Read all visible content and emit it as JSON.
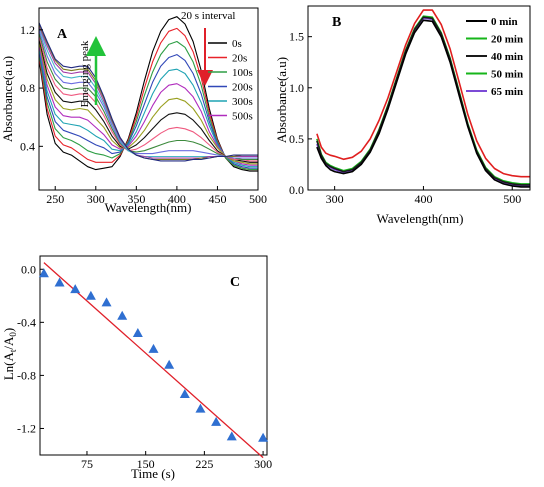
{
  "panel_labels": {
    "a": "A",
    "b": "B",
    "c": "C"
  },
  "annotations": {
    "interval": "20 s interval",
    "emerging": "Emerging peak"
  },
  "colors": {
    "panel_a": [
      "#000000",
      "#e8232a",
      "#2e9e45",
      "#3148b8",
      "#1fa3b3",
      "#b02cbd",
      "#9aa021",
      "#111111",
      "#ef5a80",
      "#3c8a3c",
      "#6d6de0",
      "#48b8c8",
      "#a13ba8",
      "#7a7a1e",
      "#222a80"
    ],
    "panel_b": [
      "#e01f1f",
      "#7c4bd6",
      "#16b51a",
      "#1a1a1a",
      "#000000"
    ],
    "c_marker": "#2f6fd1",
    "c_fit": "#e0202a",
    "interval_arrow": "#e0202a",
    "emerging_arrow": "#22c33a"
  },
  "chart_data": [
    {
      "type": "line",
      "id": "A",
      "xlabel": "Wavelength(nm)",
      "ylabel": "Absorbance(a.u)",
      "xlim": [
        230,
        500
      ],
      "ylim": [
        0.1,
        1.35
      ],
      "xticks": [
        250,
        300,
        350,
        400,
        450,
        500
      ],
      "yticks": [
        0.4,
        0.8,
        1.2
      ],
      "legend": "top-right",
      "legend_entries": [
        "0s",
        "20s",
        "100s",
        "200s",
        "300s",
        "500s"
      ],
      "x": [
        230,
        240,
        250,
        260,
        270,
        280,
        290,
        300,
        310,
        320,
        330,
        340,
        350,
        360,
        370,
        380,
        390,
        400,
        410,
        420,
        430,
        440,
        450,
        460,
        470,
        480,
        490,
        500
      ],
      "series": [
        {
          "name": "0s",
          "values": [
            1.0,
            0.62,
            0.42,
            0.36,
            0.34,
            0.3,
            0.26,
            0.24,
            0.25,
            0.26,
            0.33,
            0.45,
            0.63,
            0.85,
            1.05,
            1.19,
            1.27,
            1.29,
            1.24,
            1.12,
            0.92,
            0.66,
            0.45,
            0.32,
            0.26,
            0.24,
            0.23,
            0.23
          ]
        },
        {
          "values": [
            1.02,
            0.66,
            0.47,
            0.41,
            0.39,
            0.35,
            0.31,
            0.29,
            0.29,
            0.29,
            0.34,
            0.44,
            0.6,
            0.8,
            0.98,
            1.11,
            1.19,
            1.21,
            1.16,
            1.05,
            0.87,
            0.63,
            0.44,
            0.32,
            0.27,
            0.25,
            0.24,
            0.24
          ]
        },
        {
          "values": [
            1.04,
            0.7,
            0.52,
            0.46,
            0.44,
            0.41,
            0.37,
            0.35,
            0.34,
            0.32,
            0.35,
            0.43,
            0.57,
            0.75,
            0.91,
            1.03,
            1.1,
            1.12,
            1.08,
            0.98,
            0.82,
            0.6,
            0.43,
            0.32,
            0.27,
            0.25,
            0.24,
            0.24
          ]
        },
        {
          "values": [
            1.06,
            0.74,
            0.57,
            0.51,
            0.49,
            0.47,
            0.44,
            0.41,
            0.39,
            0.35,
            0.36,
            0.42,
            0.54,
            0.69,
            0.84,
            0.95,
            1.01,
            1.03,
            0.99,
            0.9,
            0.76,
            0.57,
            0.42,
            0.33,
            0.28,
            0.26,
            0.25,
            0.25
          ]
        },
        {
          "values": [
            1.08,
            0.78,
            0.62,
            0.56,
            0.55,
            0.54,
            0.51,
            0.47,
            0.44,
            0.38,
            0.37,
            0.41,
            0.5,
            0.63,
            0.76,
            0.86,
            0.92,
            0.93,
            0.9,
            0.82,
            0.7,
            0.54,
            0.41,
            0.33,
            0.29,
            0.27,
            0.26,
            0.26
          ]
        },
        {
          "values": [
            1.1,
            0.82,
            0.67,
            0.61,
            0.6,
            0.6,
            0.58,
            0.53,
            0.48,
            0.41,
            0.38,
            0.4,
            0.47,
            0.57,
            0.68,
            0.77,
            0.82,
            0.83,
            0.8,
            0.74,
            0.64,
            0.5,
            0.4,
            0.33,
            0.3,
            0.28,
            0.27,
            0.27
          ]
        },
        {
          "values": [
            1.12,
            0.86,
            0.72,
            0.66,
            0.65,
            0.66,
            0.65,
            0.59,
            0.53,
            0.44,
            0.39,
            0.39,
            0.44,
            0.51,
            0.6,
            0.67,
            0.72,
            0.73,
            0.71,
            0.66,
            0.58,
            0.47,
            0.39,
            0.33,
            0.3,
            0.29,
            0.28,
            0.28
          ]
        },
        {
          "values": [
            1.14,
            0.9,
            0.77,
            0.71,
            0.7,
            0.71,
            0.71,
            0.65,
            0.57,
            0.47,
            0.4,
            0.38,
            0.41,
            0.46,
            0.52,
            0.58,
            0.62,
            0.63,
            0.62,
            0.58,
            0.52,
            0.44,
            0.37,
            0.33,
            0.31,
            0.3,
            0.29,
            0.29
          ]
        },
        {
          "values": [
            1.16,
            0.94,
            0.82,
            0.76,
            0.75,
            0.76,
            0.76,
            0.7,
            0.61,
            0.5,
            0.41,
            0.37,
            0.38,
            0.41,
            0.45,
            0.49,
            0.52,
            0.53,
            0.52,
            0.5,
            0.46,
            0.41,
            0.36,
            0.33,
            0.31,
            0.31,
            0.3,
            0.3
          ]
        },
        {
          "values": [
            1.18,
            0.98,
            0.86,
            0.8,
            0.79,
            0.8,
            0.8,
            0.74,
            0.64,
            0.52,
            0.42,
            0.37,
            0.36,
            0.37,
            0.39,
            0.41,
            0.43,
            0.44,
            0.44,
            0.43,
            0.41,
            0.38,
            0.35,
            0.33,
            0.32,
            0.31,
            0.31,
            0.31
          ]
        },
        {
          "values": [
            1.2,
            1.02,
            0.9,
            0.84,
            0.83,
            0.84,
            0.84,
            0.77,
            0.67,
            0.54,
            0.43,
            0.37,
            0.35,
            0.35,
            0.35,
            0.36,
            0.37,
            0.37,
            0.37,
            0.37,
            0.36,
            0.35,
            0.34,
            0.33,
            0.32,
            0.32,
            0.32,
            0.32
          ]
        },
        {
          "values": [
            1.22,
            1.06,
            0.94,
            0.88,
            0.87,
            0.88,
            0.88,
            0.8,
            0.69,
            0.56,
            0.44,
            0.37,
            0.34,
            0.33,
            0.33,
            0.33,
            0.33,
            0.33,
            0.33,
            0.33,
            0.33,
            0.33,
            0.33,
            0.33,
            0.33,
            0.33,
            0.33,
            0.33
          ]
        },
        {
          "values": [
            1.23,
            1.09,
            0.97,
            0.91,
            0.9,
            0.91,
            0.91,
            0.83,
            0.71,
            0.57,
            0.45,
            0.38,
            0.34,
            0.33,
            0.32,
            0.32,
            0.32,
            0.32,
            0.32,
            0.32,
            0.32,
            0.33,
            0.33,
            0.33,
            0.33,
            0.33,
            0.33,
            0.33
          ]
        },
        {
          "values": [
            1.24,
            1.11,
            0.99,
            0.93,
            0.92,
            0.93,
            0.93,
            0.85,
            0.73,
            0.58,
            0.46,
            0.38,
            0.34,
            0.32,
            0.31,
            0.31,
            0.31,
            0.31,
            0.31,
            0.31,
            0.32,
            0.32,
            0.33,
            0.33,
            0.33,
            0.34,
            0.34,
            0.34
          ]
        },
        {
          "values": [
            1.25,
            1.12,
            1.0,
            0.95,
            0.94,
            0.95,
            0.95,
            0.87,
            0.74,
            0.59,
            0.46,
            0.38,
            0.34,
            0.32,
            0.31,
            0.3,
            0.3,
            0.3,
            0.3,
            0.31,
            0.31,
            0.32,
            0.33,
            0.33,
            0.34,
            0.34,
            0.34,
            0.34
          ]
        }
      ]
    },
    {
      "type": "line",
      "id": "B",
      "xlabel": "Wavelength(nm)",
      "ylabel": "Absorbance(a.u)",
      "xlim": [
        270,
        520
      ],
      "ylim": [
        0,
        1.8
      ],
      "xticks": [
        300,
        400,
        500
      ],
      "yticks": [
        0.0,
        0.5,
        1.0,
        1.5
      ],
      "legend": "top-right",
      "x": [
        280,
        285,
        290,
        295,
        300,
        310,
        320,
        330,
        340,
        350,
        360,
        370,
        380,
        390,
        400,
        410,
        420,
        430,
        440,
        450,
        460,
        470,
        480,
        490,
        500,
        510,
        520
      ],
      "series": [
        {
          "name": "0 min",
          "values": [
            0.55,
            0.42,
            0.36,
            0.34,
            0.33,
            0.3,
            0.32,
            0.38,
            0.5,
            0.68,
            0.9,
            1.16,
            1.42,
            1.63,
            1.76,
            1.76,
            1.62,
            1.38,
            1.06,
            0.74,
            0.48,
            0.31,
            0.21,
            0.16,
            0.14,
            0.13,
            0.13
          ]
        },
        {
          "name": "20 min",
          "values": [
            0.45,
            0.33,
            0.25,
            0.22,
            0.2,
            0.17,
            0.19,
            0.26,
            0.38,
            0.57,
            0.81,
            1.08,
            1.35,
            1.56,
            1.68,
            1.67,
            1.52,
            1.27,
            0.95,
            0.63,
            0.37,
            0.2,
            0.11,
            0.07,
            0.05,
            0.04,
            0.04
          ]
        },
        {
          "name": "40 min",
          "values": [
            0.5,
            0.35,
            0.27,
            0.24,
            0.22,
            0.19,
            0.21,
            0.28,
            0.4,
            0.59,
            0.83,
            1.1,
            1.37,
            1.58,
            1.7,
            1.69,
            1.54,
            1.29,
            0.97,
            0.65,
            0.39,
            0.22,
            0.13,
            0.09,
            0.07,
            0.06,
            0.06
          ]
        },
        {
          "name": "50 min",
          "values": [
            0.48,
            0.34,
            0.26,
            0.23,
            0.21,
            0.18,
            0.2,
            0.27,
            0.39,
            0.58,
            0.82,
            1.09,
            1.36,
            1.57,
            1.69,
            1.68,
            1.53,
            1.28,
            0.96,
            0.64,
            0.38,
            0.21,
            0.12,
            0.08,
            0.06,
            0.05,
            0.05
          ]
        },
        {
          "name": "65 min",
          "values": [
            0.42,
            0.31,
            0.24,
            0.2,
            0.18,
            0.16,
            0.18,
            0.25,
            0.37,
            0.55,
            0.79,
            1.06,
            1.33,
            1.54,
            1.66,
            1.65,
            1.5,
            1.25,
            0.93,
            0.62,
            0.36,
            0.19,
            0.1,
            0.06,
            0.04,
            0.03,
            0.03
          ]
        }
      ]
    },
    {
      "type": "scatter",
      "id": "C",
      "xlabel": "Time (s)",
      "ylabel_main": "Ln(A",
      "ylabel_sub1": "t",
      "ylabel_mid": "/A",
      "ylabel_sub2": "0",
      "ylabel_end": ")",
      "xlim": [
        15,
        305
      ],
      "ylim": [
        -1.4,
        0.1
      ],
      "xticks": [
        75,
        150,
        225,
        300
      ],
      "yticks": [
        0.0,
        -0.4,
        -0.8,
        -1.2
      ],
      "points": {
        "x": [
          20,
          40,
          60,
          80,
          100,
          120,
          140,
          160,
          180,
          200,
          220,
          240,
          260,
          300
        ],
        "y": [
          -0.03,
          -0.1,
          -0.15,
          -0.2,
          -0.25,
          -0.35,
          -0.48,
          -0.6,
          -0.72,
          -0.94,
          -1.05,
          -1.15,
          -1.26,
          -1.27
        ]
      },
      "fit_line": {
        "x": [
          20,
          300
        ],
        "y": [
          0.05,
          -1.42
        ]
      }
    }
  ]
}
